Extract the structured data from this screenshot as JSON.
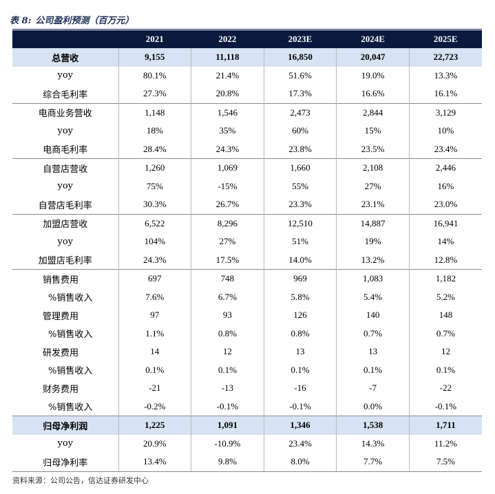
{
  "caption": {
    "label": "表 8:",
    "title": "公司盈利预测（百万元）"
  },
  "table": {
    "headers": [
      "",
      "2021",
      "2022",
      "2023E",
      "2024E",
      "2025E"
    ],
    "rows": [
      {
        "label": "总营收",
        "values": [
          "9,155",
          "11,118",
          "16,850",
          "20,047",
          "22,723"
        ],
        "style": "highlight"
      },
      {
        "label": "yoy",
        "values": [
          "80.1%",
          "21.4%",
          "51.6%",
          "19.0%",
          "13.3%"
        ],
        "style": "plain"
      },
      {
        "label": "综合毛利率",
        "values": [
          "27.3%",
          "20.8%",
          "17.3%",
          "16.6%",
          "16.1%"
        ],
        "style": "plain"
      },
      {
        "label": "电商业务营收",
        "values": [
          "1,148",
          "1,546",
          "2,473",
          "2,844",
          "3,129"
        ],
        "style": "group"
      },
      {
        "label": "yoy",
        "values": [
          "18%",
          "35%",
          "60%",
          "15%",
          "10%"
        ],
        "style": "plain"
      },
      {
        "label": "电商毛利率",
        "values": [
          "28.4%",
          "24.3%",
          "23.8%",
          "23.5%",
          "23.4%"
        ],
        "style": "plain"
      },
      {
        "label": "自营店营收",
        "values": [
          "1,260",
          "1,069",
          "1,660",
          "2,108",
          "2,446"
        ],
        "style": "group"
      },
      {
        "label": "yoy",
        "values": [
          "75%",
          "-15%",
          "55%",
          "27%",
          "16%"
        ],
        "style": "plain"
      },
      {
        "label": "自营店毛利率",
        "values": [
          "30.3%",
          "26.7%",
          "23.3%",
          "23.1%",
          "23.0%"
        ],
        "style": "plain"
      },
      {
        "label": "加盟店营收",
        "values": [
          "6,522",
          "8,296",
          "12,510",
          "14,887",
          "16,941"
        ],
        "style": "group"
      },
      {
        "label": "yoy",
        "values": [
          "104%",
          "27%",
          "51%",
          "19%",
          "14%"
        ],
        "style": "plain"
      },
      {
        "label": "加盟店毛利率",
        "values": [
          "24.3%",
          "17.5%",
          "14.0%",
          "13.2%",
          "12.8%"
        ],
        "style": "plain"
      },
      {
        "label": "销售费用",
        "values": [
          "697",
          "748",
          "969",
          "1,083",
          "1,182"
        ],
        "style": "group-indent1"
      },
      {
        "label": "%销售收入",
        "values": [
          "7.6%",
          "6.7%",
          "5.8%",
          "5.4%",
          "5.2%"
        ],
        "style": "indent2"
      },
      {
        "label": "管理费用",
        "values": [
          "97",
          "93",
          "126",
          "140",
          "148"
        ],
        "style": "indent1"
      },
      {
        "label": "%销售收入",
        "values": [
          "1.1%",
          "0.8%",
          "0.8%",
          "0.7%",
          "0.7%"
        ],
        "style": "indent2"
      },
      {
        "label": "研发费用",
        "values": [
          "14",
          "12",
          "13",
          "13",
          "12"
        ],
        "style": "indent1"
      },
      {
        "label": "%销售收入",
        "values": [
          "0.1%",
          "0.1%",
          "0.1%",
          "0.1%",
          "0.1%"
        ],
        "style": "indent2"
      },
      {
        "label": "财务费用",
        "values": [
          "-21",
          "-13",
          "-16",
          "-7",
          "-22"
        ],
        "style": "indent1"
      },
      {
        "label": "%销售收入",
        "values": [
          "-0.2%",
          "-0.1%",
          "-0.1%",
          "0.0%",
          "-0.1%"
        ],
        "style": "indent2"
      },
      {
        "label": "归母净利润",
        "values": [
          "1,225",
          "1,091",
          "1,346",
          "1,538",
          "1,711"
        ],
        "style": "highlight"
      },
      {
        "label": "yoy",
        "values": [
          "20.9%",
          "-10.9%",
          "23.4%",
          "14.3%",
          "11.2%"
        ],
        "style": "plain"
      },
      {
        "label": "归母净利率",
        "values": [
          "13.4%",
          "9.8%",
          "8.0%",
          "7.7%",
          "7.5%"
        ],
        "style": "plain-last"
      }
    ]
  },
  "source": "资料来源：公司公告，信达证券研发中心",
  "colors": {
    "header_bg": "#0a1a3f",
    "highlight_bg": "#d7e3f3",
    "caption": "#1f2f57"
  }
}
